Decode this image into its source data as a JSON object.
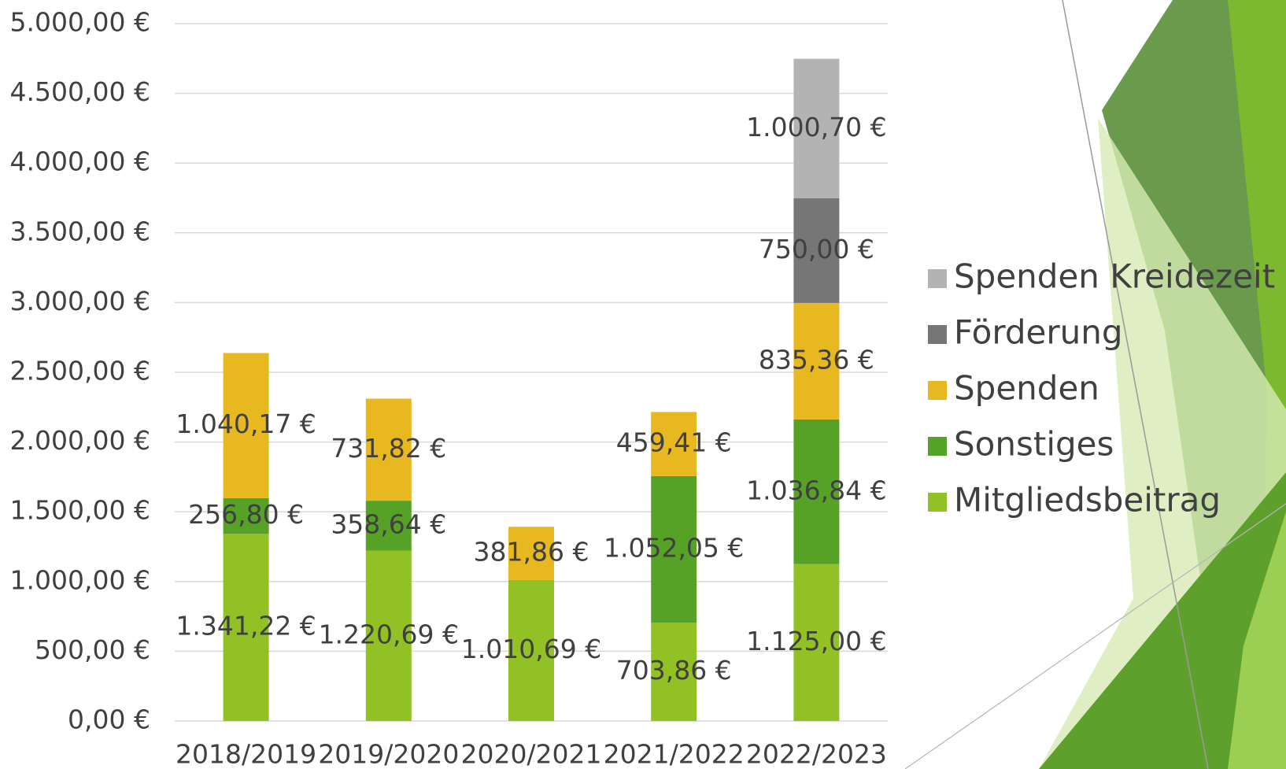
{
  "chart_data": {
    "type": "stacked_bar",
    "categories": [
      "2018/2019",
      "2019/2020",
      "2020/2021",
      "2021/2022",
      "2022/2023"
    ],
    "series": [
      {
        "name": "Mitgliedsbeitrag",
        "color": "#92c126",
        "values": [
          1341.22,
          1220.69,
          1010.69,
          703.86,
          1125.0
        ],
        "value_labels": [
          "1.341,22 €",
          "1.220,69 €",
          "1.010,69 €",
          "703,86 €",
          "1.125,00 €"
        ]
      },
      {
        "name": "Sonstiges",
        "color": "#56a226",
        "values": [
          256.8,
          358.64,
          null,
          1052.05,
          1036.84
        ],
        "value_labels": [
          "256,80 €",
          "358,64 €",
          null,
          "1.052,05 €",
          "1.036,84 €"
        ]
      },
      {
        "name": "Spenden",
        "color": "#e8b820",
        "values": [
          1040.17,
          731.82,
          381.86,
          459.41,
          835.36
        ],
        "value_labels": [
          "1.040,17 €",
          "731,82 €",
          "381,86 €",
          "459,41 €",
          "835,36 €"
        ]
      },
      {
        "name": "Förderung",
        "color": "#767676",
        "values": [
          null,
          null,
          null,
          null,
          750.0
        ],
        "value_labels": [
          null,
          null,
          null,
          null,
          "750,00 €"
        ]
      },
      {
        "name": "Spenden Kreidezeit",
        "color": "#b3b3b3",
        "values": [
          null,
          null,
          null,
          null,
          1000.7
        ],
        "value_labels": [
          null,
          null,
          null,
          null,
          "1.000,70 €"
        ]
      }
    ],
    "ylim": [
      0,
      5000
    ],
    "yticks": [
      {
        "value": 0,
        "label": "0,00 €"
      },
      {
        "value": 500,
        "label": "500,00 €"
      },
      {
        "value": 1000,
        "label": "1.000,00 €"
      },
      {
        "value": 1500,
        "label": "1.500,00 €"
      },
      {
        "value": 2000,
        "label": "2.000,00 €"
      },
      {
        "value": 2500,
        "label": "2.500,00 €"
      },
      {
        "value": 3000,
        "label": "3.000,00 €"
      },
      {
        "value": 3500,
        "label": "3.500,00 €"
      },
      {
        "value": 4000,
        "label": "4.000,00 €"
      },
      {
        "value": 4500,
        "label": "4.500,00 €"
      },
      {
        "value": 5000,
        "label": "5.000,00 €"
      }
    ],
    "grid": true,
    "legend": "right"
  }
}
